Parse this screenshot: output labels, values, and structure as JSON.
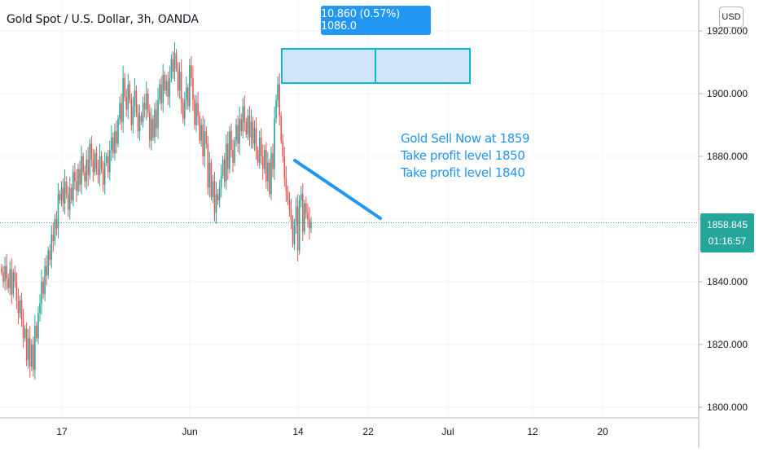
{
  "header": {
    "title": "Gold Spot / U.S. Dollar, 3h, OANDA",
    "currency_button": "USD"
  },
  "measure": {
    "label": "10.860 (0.57%) 1086.0"
  },
  "note": {
    "lines": [
      "Gold Sell Now at 1859",
      "Take profit level 1850",
      "Take profit level 1840"
    ]
  },
  "price_tag": {
    "price": "1858.845",
    "countdown": "01:16:57"
  },
  "colors": {
    "up": "#26a69a",
    "down": "#ef5350",
    "accent": "#2196f3",
    "grid": "#f0f3fa",
    "axis": "#b2b5be"
  },
  "chart_data": {
    "type": "candlestick",
    "title": "Gold Spot / U.S. Dollar, 3h, OANDA",
    "x_ticks": [
      "17",
      "Jun",
      "14",
      "22",
      "Jul",
      "12",
      "20"
    ],
    "y_ticks": [
      "1800.000",
      "1820.000",
      "1840.000",
      "1860.000",
      "1880.000",
      "1900.000",
      "1920.000"
    ],
    "ylim": [
      1798,
      1925
    ],
    "last_price": 1858.845,
    "candles_close": [
      1843,
      1840,
      1845,
      1841,
      1838,
      1844,
      1836,
      1843,
      1840,
      1834,
      1830,
      1834,
      1828,
      1822,
      1825,
      1815,
      1822,
      1813,
      1820,
      1812,
      1826,
      1822,
      1830,
      1833,
      1840,
      1836,
      1845,
      1842,
      1850,
      1847,
      1855,
      1853,
      1860,
      1857,
      1868,
      1866,
      1870,
      1865,
      1872,
      1868,
      1863,
      1870,
      1866,
      1875,
      1872,
      1869,
      1876,
      1871,
      1880,
      1875,
      1872,
      1879,
      1874,
      1884,
      1879,
      1875,
      1881,
      1876,
      1874,
      1880,
      1876,
      1871,
      1878,
      1880,
      1875,
      1882,
      1886,
      1881,
      1888,
      1884,
      1892,
      1897,
      1891,
      1905,
      1899,
      1895,
      1903,
      1898,
      1890,
      1896,
      1901,
      1894,
      1888,
      1893,
      1891,
      1897,
      1895,
      1900,
      1894,
      1885,
      1892,
      1886,
      1895,
      1889,
      1898,
      1903,
      1897,
      1906,
      1901,
      1904,
      1899,
      1905,
      1911,
      1907,
      1913,
      1908,
      1901,
      1907,
      1897,
      1892,
      1898,
      1902,
      1896,
      1909,
      1905,
      1898,
      1890,
      1897,
      1893,
      1885,
      1890,
      1880,
      1888,
      1884,
      1870,
      1878,
      1867,
      1872,
      1862,
      1868,
      1866,
      1870,
      1874,
      1879,
      1872,
      1884,
      1876,
      1888,
      1882,
      1878,
      1885,
      1890,
      1884,
      1892,
      1888,
      1896,
      1891,
      1887,
      1893,
      1886,
      1891,
      1884,
      1889,
      1882,
      1878,
      1886,
      1880,
      1876,
      1882,
      1872,
      1878,
      1868,
      1881,
      1876,
      1892,
      1898,
      1903,
      1893,
      1885,
      1880,
      1873,
      1869,
      1866,
      1863,
      1860,
      1852,
      1858,
      1864,
      1850,
      1866,
      1868,
      1856,
      1865,
      1862,
      1860,
      1857,
      1859
    ]
  }
}
